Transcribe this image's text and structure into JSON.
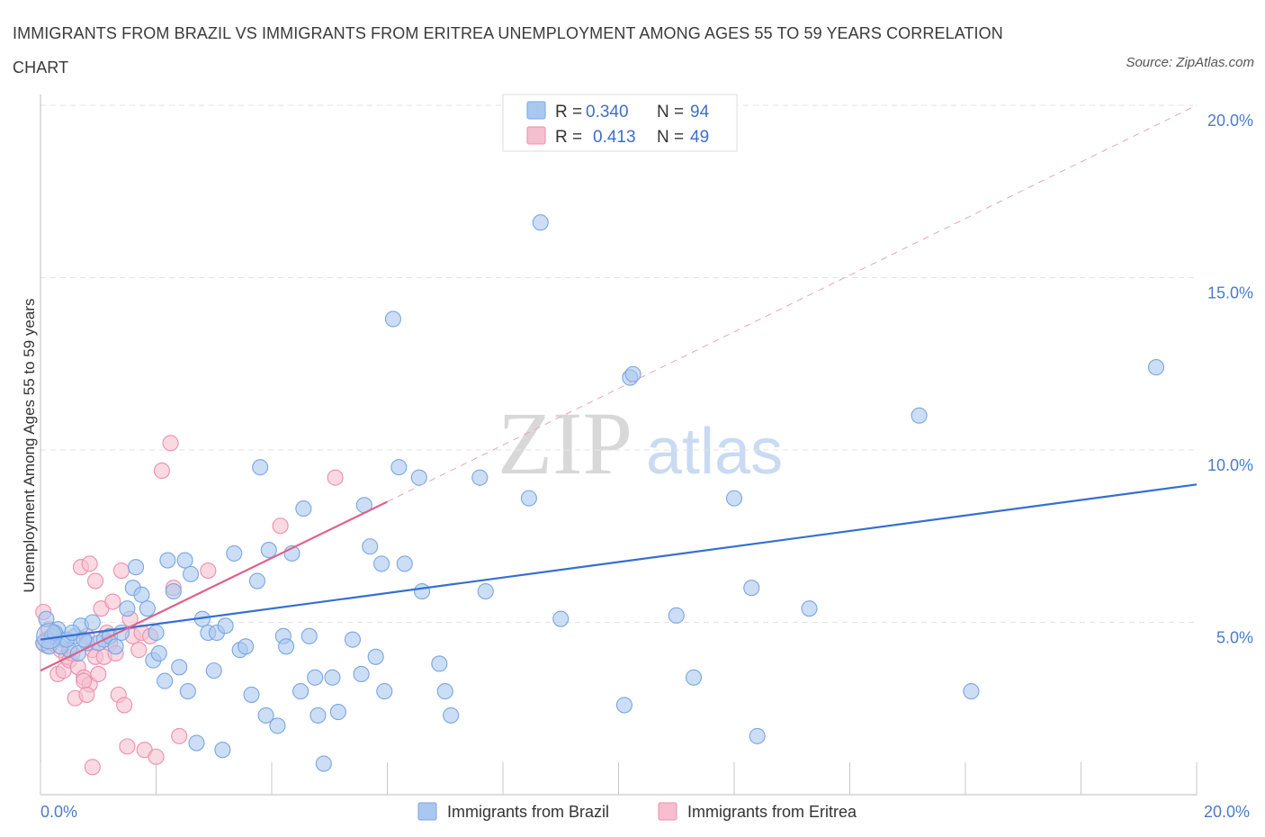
{
  "chart_data": {
    "type": "scatter",
    "title": "IMMIGRANTS FROM BRAZIL VS IMMIGRANTS FROM ERITREA UNEMPLOYMENT AMONG AGES 55 TO 59 YEARS CORRELATION CHART",
    "source": "Source: ZipAtlas.com",
    "xlabel": "",
    "ylabel": "Unemployment Among Ages 55 to 59 years",
    "xlim": [
      0,
      20
    ],
    "ylim": [
      0,
      20
    ],
    "x_tick_labels": [
      "0.0%",
      "20.0%"
    ],
    "y_tick_labels": [
      "5.0%",
      "10.0%",
      "15.0%",
      "20.0%"
    ],
    "y_ticks": [
      5,
      10,
      15,
      20
    ],
    "watermark": {
      "part1": "ZIP",
      "part2": "atlas"
    },
    "legend": {
      "rows": [
        {
          "r_label": "R =",
          "r_value": "0.340",
          "n_label": "N =",
          "n_value": "94"
        },
        {
          "r_label": "R =",
          "r_value": "0.413",
          "n_label": "N =",
          "n_value": "49"
        }
      ]
    },
    "series": [
      {
        "name": "Immigrants from Brazil",
        "color": "#a9c8f0",
        "edge": "#7aa6e0",
        "trend_color": "#3570d0",
        "R": 0.34,
        "N": 94,
        "trend": {
          "x0": 0.0,
          "y0": 4.5,
          "x1": 20.0,
          "y1": 9.0
        },
        "points": [
          [
            0.1,
            5.1
          ],
          [
            0.2,
            4.6
          ],
          [
            0.3,
            4.8
          ],
          [
            0.4,
            4.5
          ],
          [
            0.5,
            4.2
          ],
          [
            0.6,
            4.6
          ],
          [
            0.7,
            4.9
          ],
          [
            0.8,
            4.4
          ],
          [
            0.9,
            5.0
          ],
          [
            1.0,
            4.4
          ],
          [
            1.1,
            4.5
          ],
          [
            1.2,
            4.6
          ],
          [
            0.05,
            4.4
          ],
          [
            0.15,
            4.3
          ],
          [
            0.25,
            4.7
          ],
          [
            0.35,
            4.3
          ],
          [
            0.45,
            4.5
          ],
          [
            0.55,
            4.7
          ],
          [
            0.65,
            4.1
          ],
          [
            0.75,
            4.5
          ],
          [
            1.3,
            4.3
          ],
          [
            1.4,
            4.7
          ],
          [
            1.5,
            5.4
          ],
          [
            1.6,
            6.0
          ],
          [
            1.65,
            6.6
          ],
          [
            1.75,
            5.8
          ],
          [
            1.85,
            5.4
          ],
          [
            1.95,
            3.9
          ],
          [
            2.0,
            4.7
          ],
          [
            2.05,
            4.1
          ],
          [
            2.15,
            3.3
          ],
          [
            2.2,
            6.8
          ],
          [
            2.3,
            5.9
          ],
          [
            2.4,
            3.7
          ],
          [
            2.5,
            6.8
          ],
          [
            2.55,
            3.0
          ],
          [
            2.6,
            6.4
          ],
          [
            2.7,
            1.5
          ],
          [
            2.8,
            5.1
          ],
          [
            2.9,
            4.7
          ],
          [
            3.0,
            3.6
          ],
          [
            3.05,
            4.7
          ],
          [
            3.15,
            1.3
          ],
          [
            3.2,
            4.9
          ],
          [
            3.35,
            7.0
          ],
          [
            3.45,
            4.2
          ],
          [
            3.55,
            4.3
          ],
          [
            3.65,
            2.9
          ],
          [
            3.75,
            6.2
          ],
          [
            3.8,
            9.5
          ],
          [
            3.9,
            2.3
          ],
          [
            3.95,
            7.1
          ],
          [
            4.1,
            2.0
          ],
          [
            4.2,
            4.6
          ],
          [
            4.25,
            4.3
          ],
          [
            4.35,
            7.0
          ],
          [
            4.5,
            3.0
          ],
          [
            4.55,
            8.3
          ],
          [
            4.65,
            4.6
          ],
          [
            4.75,
            3.4
          ],
          [
            4.8,
            2.3
          ],
          [
            4.9,
            0.9
          ],
          [
            5.05,
            3.4
          ],
          [
            5.15,
            2.4
          ],
          [
            5.4,
            4.5
          ],
          [
            5.55,
            3.5
          ],
          [
            5.6,
            8.4
          ],
          [
            5.7,
            7.2
          ],
          [
            5.8,
            4.0
          ],
          [
            5.9,
            6.7
          ],
          [
            5.95,
            3.0
          ],
          [
            6.1,
            13.8
          ],
          [
            6.2,
            9.5
          ],
          [
            6.3,
            6.7
          ],
          [
            6.55,
            9.2
          ],
          [
            6.6,
            5.9
          ],
          [
            6.9,
            3.8
          ],
          [
            7.0,
            3.0
          ],
          [
            7.1,
            2.3
          ],
          [
            7.6,
            9.2
          ],
          [
            7.7,
            5.9
          ],
          [
            8.45,
            8.6
          ],
          [
            8.65,
            16.6
          ],
          [
            9.0,
            5.1
          ],
          [
            10.1,
            2.6
          ],
          [
            10.2,
            12.1
          ],
          [
            10.25,
            12.2
          ],
          [
            11.0,
            5.2
          ],
          [
            11.3,
            3.4
          ],
          [
            12.0,
            8.6
          ],
          [
            12.3,
            6.0
          ],
          [
            12.4,
            1.7
          ],
          [
            13.3,
            5.4
          ],
          [
            15.2,
            11.0
          ],
          [
            16.1,
            3.0
          ],
          [
            19.3,
            12.4
          ]
        ]
      },
      {
        "name": "Immigrants from Eritrea",
        "color": "#f6bfd0",
        "edge": "#ec8fad",
        "trend_color": "#e0608a",
        "R": 0.413,
        "N": 49,
        "trend": {
          "x0": 0.0,
          "y0": 3.6,
          "x1": 6.0,
          "y1": 8.5
        },
        "dashed_extension": {
          "x0": 6.0,
          "y0": 8.5,
          "x1": 20.0,
          "y1": 20.0
        },
        "points": [
          [
            0.05,
            5.3
          ],
          [
            0.1,
            4.5
          ],
          [
            0.15,
            4.8
          ],
          [
            0.2,
            4.4
          ],
          [
            0.25,
            4.6
          ],
          [
            0.3,
            3.5
          ],
          [
            0.35,
            4.2
          ],
          [
            0.4,
            3.6
          ],
          [
            0.45,
            4.0
          ],
          [
            0.5,
            3.9
          ],
          [
            0.55,
            4.1
          ],
          [
            0.6,
            2.8
          ],
          [
            0.65,
            3.7
          ],
          [
            0.7,
            6.6
          ],
          [
            0.75,
            3.4
          ],
          [
            0.8,
            4.6
          ],
          [
            0.85,
            3.2
          ],
          [
            0.9,
            4.2
          ],
          [
            0.95,
            4.0
          ],
          [
            1.0,
            3.5
          ],
          [
            0.75,
            3.3
          ],
          [
            0.8,
            2.9
          ],
          [
            0.85,
            6.7
          ],
          [
            0.9,
            0.8
          ],
          [
            0.95,
            6.2
          ],
          [
            1.05,
            5.4
          ],
          [
            1.1,
            4.0
          ],
          [
            1.15,
            4.7
          ],
          [
            1.2,
            4.4
          ],
          [
            1.25,
            5.6
          ],
          [
            1.3,
            4.1
          ],
          [
            1.35,
            2.9
          ],
          [
            1.4,
            6.5
          ],
          [
            1.45,
            2.6
          ],
          [
            1.5,
            1.4
          ],
          [
            1.55,
            5.1
          ],
          [
            1.6,
            4.6
          ],
          [
            1.7,
            4.2
          ],
          [
            1.75,
            4.7
          ],
          [
            1.8,
            1.3
          ],
          [
            1.9,
            4.6
          ],
          [
            2.0,
            1.1
          ],
          [
            2.1,
            9.4
          ],
          [
            2.25,
            10.2
          ],
          [
            2.3,
            6.0
          ],
          [
            2.4,
            1.7
          ],
          [
            2.9,
            6.5
          ],
          [
            4.15,
            7.8
          ],
          [
            5.1,
            9.2
          ]
        ]
      }
    ]
  }
}
